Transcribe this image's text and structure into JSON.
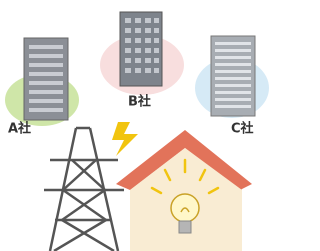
{
  "companies": [
    {
      "label": "A社"
    },
    {
      "label": "B社"
    },
    {
      "label": "C社"
    }
  ]
}
